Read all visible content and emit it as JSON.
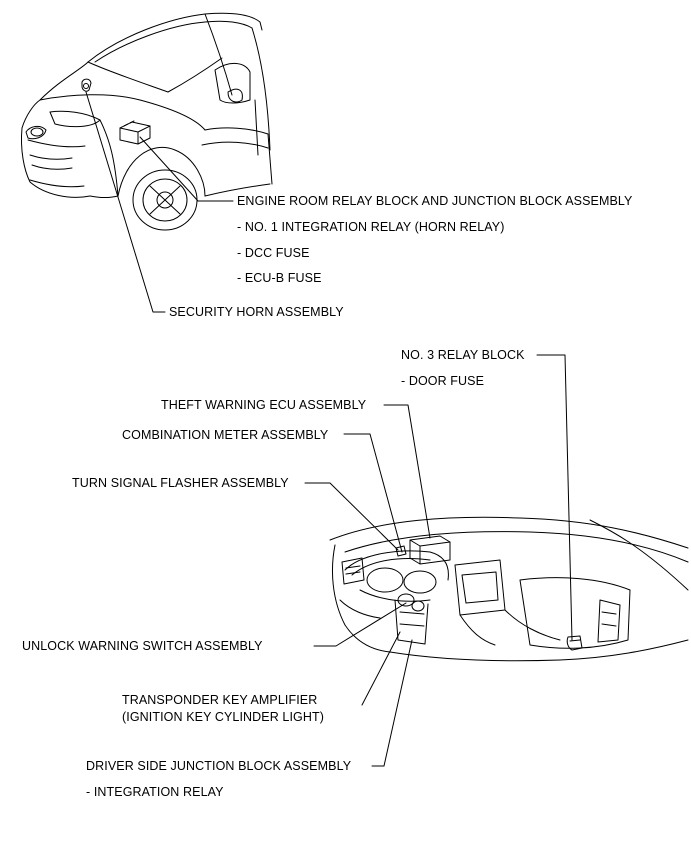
{
  "labels": {
    "engine_room_relay_block": "ENGINE ROOM RELAY BLOCK AND JUNCTION BLOCK ASSEMBLY",
    "integration_relay_horn": "- NO. 1 INTEGRATION RELAY (HORN RELAY)",
    "dcc_fuse": "- DCC FUSE",
    "ecu_b_fuse": "- ECU-B FUSE",
    "security_horn": "SECURITY HORN ASSEMBLY",
    "no3_relay_block": "NO. 3 RELAY BLOCK",
    "door_fuse": "- DOOR FUSE",
    "theft_warning_ecu": "THEFT WARNING ECU ASSEMBLY",
    "combination_meter": "COMBINATION METER ASSEMBLY",
    "turn_signal_flasher": "TURN SIGNAL FLASHER ASSEMBLY",
    "unlock_warning_switch": "UNLOCK WARNING SWITCH ASSEMBLY",
    "transponder_key_amplifier": "TRANSPONDER KEY AMPLIFIER",
    "ignition_key_cylinder_light": "(IGNITION KEY CYLINDER LIGHT)",
    "driver_side_junction_block": "DRIVER SIDE JUNCTION BLOCK ASSEMBLY",
    "integration_relay": "- INTEGRATION RELAY"
  },
  "colors": {
    "ink": "#000000",
    "background": "#ffffff"
  }
}
